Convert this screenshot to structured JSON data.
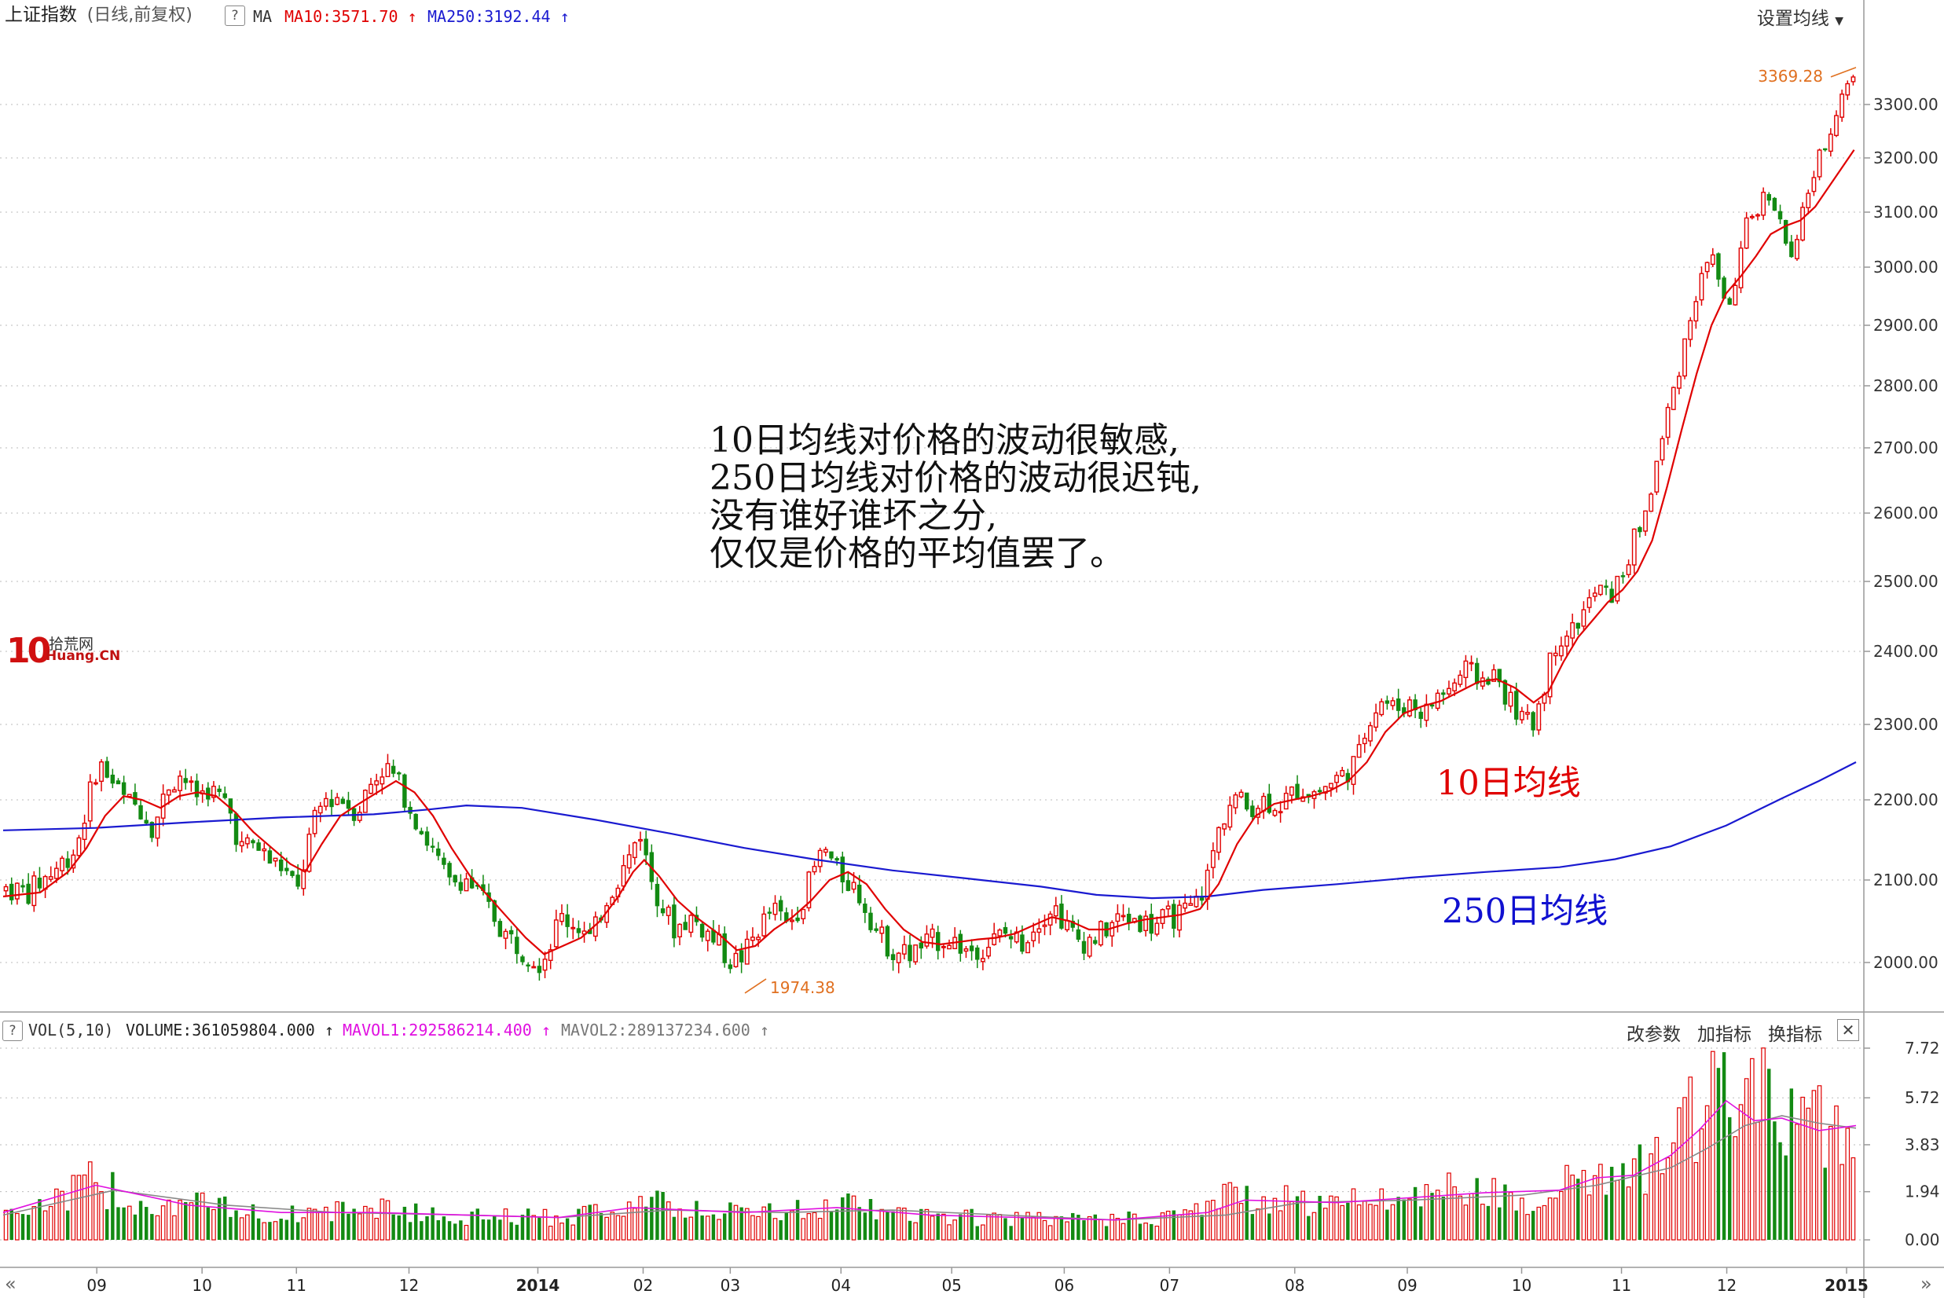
{
  "header": {
    "title": "上证指数",
    "subtitle": "(日线,前复权)",
    "help": "?",
    "ma_label": "MA",
    "ma10_label": "MA10:3571.70",
    "ma250_label": "MA250:3192.44",
    "settings_label": "设置均线",
    "colors": {
      "ma10": "#e00000",
      "ma250": "#1a1ad0",
      "up": "#e00000",
      "down": "#138a13"
    }
  },
  "volume_header": {
    "help": "?",
    "vol_label": "VOL(5,10)",
    "volume_label": "VOLUME:361059804.000",
    "mavol1_label": "MAVOL1:292586214.400",
    "mavol2_label": "MAVOL2:289137234.600",
    "buttons": [
      "改参数",
      "加指标",
      "换指标"
    ],
    "close": "✕",
    "colors": {
      "mavol1": "#e010e0",
      "mavol2": "#888888"
    }
  },
  "annotation": {
    "lines": [
      "10日均线对价格的波动很敏感,",
      "250日均线对价格的波动很迟钝,",
      "没有谁好谁坏之分,",
      "仅仅是价格的平均值罢了。"
    ]
  },
  "series_labels": {
    "ma10": "10日均线",
    "ma250": "250日均线"
  },
  "logo": {
    "number": "10",
    "cn": "拾荒网",
    "en": "Huang.CN"
  },
  "nav": {
    "left": "«",
    "right": "»"
  },
  "chart_data": {
    "type": "candlestick",
    "price_axis": {
      "ticks": [
        3300,
        3200,
        3100,
        3000,
        2900,
        2800,
        2700,
        2600,
        2500,
        2400,
        2300,
        2200,
        2100,
        2000
      ],
      "tick_labels": [
        "3300.00",
        "3200.00",
        "3100.00",
        "3000.00",
        "2900.00",
        "2800.00",
        "2700.00",
        "2600.00",
        "2500.00",
        "2400.00",
        "2300.00",
        "2200.00",
        "2100.00",
        "2000.00"
      ]
    },
    "volume_axis": {
      "ticks": [
        7.72,
        5.72,
        3.83,
        1.94,
        0.0
      ],
      "tick_labels": [
        "7.72",
        "5.72",
        "3.83",
        "1.94",
        "0.00"
      ]
    },
    "x_ticks": [
      {
        "label": "09",
        "pos": 0.036
      },
      {
        "label": "10",
        "pos": 0.094
      },
      {
        "label": "11",
        "pos": 0.146
      },
      {
        "label": "12",
        "pos": 0.208
      },
      {
        "label": "2014",
        "pos": 0.279
      },
      {
        "label": "02",
        "pos": 0.337
      },
      {
        "label": "03",
        "pos": 0.385
      },
      {
        "label": "04",
        "pos": 0.446
      },
      {
        "label": "05",
        "pos": 0.507
      },
      {
        "label": "06",
        "pos": 0.569
      },
      {
        "label": "07",
        "pos": 0.627
      },
      {
        "label": "08",
        "pos": 0.696
      },
      {
        "label": "09",
        "pos": 0.758
      },
      {
        "label": "10",
        "pos": 0.821
      },
      {
        "label": "11",
        "pos": 0.876
      },
      {
        "label": "12",
        "pos": 0.934
      },
      {
        "label": "2015",
        "pos": 1.0
      }
    ],
    "annotations": [
      {
        "text": "3369.28",
        "value": 3369.28
      },
      {
        "text": "1974.38",
        "value": 1974.38
      }
    ],
    "close_path": [
      [
        0.0,
        2090
      ],
      [
        0.012,
        2085
      ],
      [
        0.025,
        2110
      ],
      [
        0.038,
        2140
      ],
      [
        0.045,
        2205
      ],
      [
        0.05,
        2250
      ],
      [
        0.056,
        2230
      ],
      [
        0.064,
        2200
      ],
      [
        0.073,
        2190
      ],
      [
        0.08,
        2165
      ],
      [
        0.088,
        2220
      ],
      [
        0.095,
        2235
      ],
      [
        0.102,
        2205
      ],
      [
        0.11,
        2215
      ],
      [
        0.12,
        2195
      ],
      [
        0.127,
        2140
      ],
      [
        0.135,
        2145
      ],
      [
        0.142,
        2125
      ],
      [
        0.15,
        2115
      ],
      [
        0.158,
        2085
      ],
      [
        0.165,
        2160
      ],
      [
        0.172,
        2200
      ],
      [
        0.18,
        2205
      ],
      [
        0.19,
        2185
      ],
      [
        0.197,
        2220
      ],
      [
        0.205,
        2245
      ],
      [
        0.212,
        2225
      ],
      [
        0.22,
        2185
      ],
      [
        0.23,
        2140
      ],
      [
        0.24,
        2095
      ],
      [
        0.248,
        2105
      ],
      [
        0.26,
        2070
      ],
      [
        0.27,
        2035
      ],
      [
        0.28,
        2015
      ],
      [
        0.29,
        2000
      ],
      [
        0.3,
        2055
      ],
      [
        0.31,
        2045
      ],
      [
        0.317,
        2025
      ],
      [
        0.324,
        2075
      ],
      [
        0.332,
        2105
      ],
      [
        0.338,
        2130
      ],
      [
        0.343,
        2165
      ],
      [
        0.348,
        2110
      ],
      [
        0.355,
        2070
      ],
      [
        0.362,
        2040
      ],
      [
        0.37,
        2055
      ],
      [
        0.378,
        2040
      ],
      [
        0.386,
        2020
      ],
      [
        0.393,
        2000
      ],
      [
        0.4,
        2010
      ],
      [
        0.407,
        2040
      ],
      [
        0.415,
        2065
      ],
      [
        0.423,
        2045
      ],
      [
        0.43,
        2070
      ],
      [
        0.438,
        2115
      ],
      [
        0.443,
        2140
      ],
      [
        0.45,
        2110
      ],
      [
        0.458,
        2095
      ],
      [
        0.465,
        2070
      ],
      [
        0.472,
        2035
      ],
      [
        0.48,
        2015
      ],
      [
        0.49,
        2010
      ],
      [
        0.5,
        2025
      ],
      [
        0.51,
        2030
      ],
      [
        0.52,
        2015
      ],
      [
        0.53,
        2020
      ],
      [
        0.54,
        2035
      ],
      [
        0.55,
        2025
      ],
      [
        0.56,
        2055
      ],
      [
        0.567,
        2070
      ],
      [
        0.575,
        2040
      ],
      [
        0.582,
        2025
      ],
      [
        0.59,
        2030
      ],
      [
        0.6,
        2050
      ],
      [
        0.61,
        2055
      ],
      [
        0.62,
        2045
      ],
      [
        0.63,
        2055
      ],
      [
        0.64,
        2060
      ],
      [
        0.645,
        2075
      ],
      [
        0.65,
        2100
      ],
      [
        0.655,
        2150
      ],
      [
        0.66,
        2185
      ],
      [
        0.665,
        2205
      ],
      [
        0.672,
        2190
      ],
      [
        0.68,
        2200
      ],
      [
        0.69,
        2195
      ],
      [
        0.7,
        2215
      ],
      [
        0.71,
        2210
      ],
      [
        0.718,
        2225
      ],
      [
        0.725,
        2235
      ],
      [
        0.732,
        2255
      ],
      [
        0.738,
        2310
      ],
      [
        0.745,
        2335
      ],
      [
        0.752,
        2320
      ],
      [
        0.76,
        2330
      ],
      [
        0.768,
        2315
      ],
      [
        0.775,
        2340
      ],
      [
        0.782,
        2350
      ],
      [
        0.79,
        2375
      ],
      [
        0.798,
        2360
      ],
      [
        0.805,
        2370
      ],
      [
        0.812,
        2340
      ],
      [
        0.82,
        2310
      ],
      [
        0.826,
        2295
      ],
      [
        0.832,
        2350
      ],
      [
        0.84,
        2420
      ],
      [
        0.848,
        2430
      ],
      [
        0.855,
        2460
      ],
      [
        0.862,
        2490
      ],
      [
        0.868,
        2475
      ],
      [
        0.875,
        2510
      ],
      [
        0.882,
        2565
      ],
      [
        0.888,
        2605
      ],
      [
        0.894,
        2680
      ],
      [
        0.9,
        2760
      ],
      [
        0.906,
        2835
      ],
      [
        0.912,
        2920
      ],
      [
        0.918,
        2980
      ],
      [
        0.924,
        3030
      ],
      [
        0.93,
        2935
      ],
      [
        0.936,
        2960
      ],
      [
        0.942,
        3070
      ],
      [
        0.948,
        3110
      ],
      [
        0.955,
        3140
      ],
      [
        0.962,
        3060
      ],
      [
        0.968,
        3000
      ],
      [
        0.974,
        3130
      ],
      [
        0.98,
        3180
      ],
      [
        0.986,
        3240
      ],
      [
        0.992,
        3300
      ],
      [
        0.997,
        3345
      ]
    ],
    "ma10_path": [
      [
        0.0,
        2080
      ],
      [
        0.02,
        2085
      ],
      [
        0.035,
        2110
      ],
      [
        0.045,
        2140
      ],
      [
        0.055,
        2180
      ],
      [
        0.065,
        2205
      ],
      [
        0.075,
        2200
      ],
      [
        0.085,
        2190
      ],
      [
        0.095,
        2205
      ],
      [
        0.105,
        2210
      ],
      [
        0.115,
        2205
      ],
      [
        0.125,
        2185
      ],
      [
        0.135,
        2160
      ],
      [
        0.145,
        2140
      ],
      [
        0.155,
        2120
      ],
      [
        0.163,
        2110
      ],
      [
        0.172,
        2145
      ],
      [
        0.182,
        2180
      ],
      [
        0.192,
        2195
      ],
      [
        0.202,
        2210
      ],
      [
        0.212,
        2225
      ],
      [
        0.222,
        2210
      ],
      [
        0.232,
        2180
      ],
      [
        0.242,
        2140
      ],
      [
        0.252,
        2105
      ],
      [
        0.262,
        2080
      ],
      [
        0.272,
        2055
      ],
      [
        0.282,
        2030
      ],
      [
        0.292,
        2010
      ],
      [
        0.302,
        2020
      ],
      [
        0.312,
        2030
      ],
      [
        0.322,
        2050
      ],
      [
        0.332,
        2080
      ],
      [
        0.34,
        2110
      ],
      [
        0.346,
        2125
      ],
      [
        0.354,
        2105
      ],
      [
        0.364,
        2075
      ],
      [
        0.374,
        2055
      ],
      [
        0.386,
        2035
      ],
      [
        0.396,
        2015
      ],
      [
        0.406,
        2020
      ],
      [
        0.416,
        2040
      ],
      [
        0.426,
        2055
      ],
      [
        0.436,
        2075
      ],
      [
        0.446,
        2100
      ],
      [
        0.456,
        2110
      ],
      [
        0.466,
        2095
      ],
      [
        0.476,
        2065
      ],
      [
        0.486,
        2040
      ],
      [
        0.496,
        2025
      ],
      [
        0.506,
        2022
      ],
      [
        0.516,
        2025
      ],
      [
        0.526,
        2028
      ],
      [
        0.536,
        2030
      ],
      [
        0.546,
        2035
      ],
      [
        0.556,
        2045
      ],
      [
        0.566,
        2055
      ],
      [
        0.576,
        2050
      ],
      [
        0.586,
        2040
      ],
      [
        0.596,
        2040
      ],
      [
        0.606,
        2047
      ],
      [
        0.616,
        2052
      ],
      [
        0.626,
        2055
      ],
      [
        0.636,
        2058
      ],
      [
        0.646,
        2065
      ],
      [
        0.656,
        2095
      ],
      [
        0.666,
        2145
      ],
      [
        0.676,
        2180
      ],
      [
        0.686,
        2195
      ],
      [
        0.696,
        2200
      ],
      [
        0.706,
        2205
      ],
      [
        0.716,
        2212
      ],
      [
        0.726,
        2225
      ],
      [
        0.736,
        2250
      ],
      [
        0.746,
        2290
      ],
      [
        0.756,
        2315
      ],
      [
        0.766,
        2325
      ],
      [
        0.776,
        2332
      ],
      [
        0.786,
        2345
      ],
      [
        0.796,
        2358
      ],
      [
        0.806,
        2362
      ],
      [
        0.816,
        2350
      ],
      [
        0.826,
        2330
      ],
      [
        0.834,
        2345
      ],
      [
        0.842,
        2385
      ],
      [
        0.85,
        2420
      ],
      [
        0.858,
        2445
      ],
      [
        0.866,
        2470
      ],
      [
        0.874,
        2488
      ],
      [
        0.882,
        2515
      ],
      [
        0.89,
        2560
      ],
      [
        0.898,
        2640
      ],
      [
        0.906,
        2730
      ],
      [
        0.914,
        2820
      ],
      [
        0.922,
        2900
      ],
      [
        0.93,
        2955
      ],
      [
        0.938,
        2985
      ],
      [
        0.946,
        3020
      ],
      [
        0.954,
        3060
      ],
      [
        0.962,
        3075
      ],
      [
        0.97,
        3085
      ],
      [
        0.978,
        3110
      ],
      [
        0.986,
        3150
      ],
      [
        0.994,
        3190
      ],
      [
        0.999,
        3215
      ]
    ],
    "ma250_path": [
      [
        0.0,
        2162
      ],
      [
        0.05,
        2165
      ],
      [
        0.1,
        2172
      ],
      [
        0.15,
        2178
      ],
      [
        0.2,
        2182
      ],
      [
        0.23,
        2188
      ],
      [
        0.25,
        2193
      ],
      [
        0.28,
        2190
      ],
      [
        0.32,
        2175
      ],
      [
        0.36,
        2158
      ],
      [
        0.4,
        2140
      ],
      [
        0.44,
        2125
      ],
      [
        0.48,
        2112
      ],
      [
        0.52,
        2102
      ],
      [
        0.56,
        2092
      ],
      [
        0.59,
        2082
      ],
      [
        0.62,
        2078
      ],
      [
        0.65,
        2080
      ],
      [
        0.68,
        2088
      ],
      [
        0.72,
        2095
      ],
      [
        0.76,
        2103
      ],
      [
        0.8,
        2110
      ],
      [
        0.84,
        2116
      ],
      [
        0.87,
        2126
      ],
      [
        0.9,
        2142
      ],
      [
        0.93,
        2168
      ],
      [
        0.96,
        2202
      ],
      [
        0.98,
        2225
      ],
      [
        1.0,
        2250
      ]
    ],
    "volume_path": [
      [
        0.0,
        1.2
      ],
      [
        0.03,
        1.6
      ],
      [
        0.045,
        2.3
      ],
      [
        0.06,
        1.9
      ],
      [
        0.08,
        1.4
      ],
      [
        0.1,
        1.5
      ],
      [
        0.13,
        1.1
      ],
      [
        0.16,
        1.0
      ],
      [
        0.2,
        1.3
      ],
      [
        0.23,
        1.0
      ],
      [
        0.26,
        0.9
      ],
      [
        0.3,
        0.9
      ],
      [
        0.33,
        1.3
      ],
      [
        0.34,
        1.6
      ],
      [
        0.37,
        1.2
      ],
      [
        0.4,
        1.1
      ],
      [
        0.43,
        1.2
      ],
      [
        0.45,
        1.5
      ],
      [
        0.48,
        1.0
      ],
      [
        0.52,
        0.9
      ],
      [
        0.56,
        0.8
      ],
      [
        0.6,
        0.8
      ],
      [
        0.64,
        1.0
      ],
      [
        0.66,
        1.8
      ],
      [
        0.68,
        1.6
      ],
      [
        0.72,
        1.5
      ],
      [
        0.74,
        1.7
      ],
      [
        0.78,
        2.0
      ],
      [
        0.8,
        1.9
      ],
      [
        0.83,
        1.6
      ],
      [
        0.85,
        2.7
      ],
      [
        0.87,
        2.4
      ],
      [
        0.89,
        3.0
      ],
      [
        0.91,
        4.5
      ],
      [
        0.925,
        6.0
      ],
      [
        0.935,
        5.2
      ],
      [
        0.95,
        5.6
      ],
      [
        0.97,
        4.8
      ],
      [
        0.985,
        4.6
      ],
      [
        1.0,
        5.0
      ]
    ],
    "mavol1_path": [
      [
        0.0,
        1.1
      ],
      [
        0.05,
        2.2
      ],
      [
        0.1,
        1.4
      ],
      [
        0.15,
        1.1
      ],
      [
        0.2,
        1.1
      ],
      [
        0.25,
        1.0
      ],
      [
        0.3,
        0.9
      ],
      [
        0.34,
        1.3
      ],
      [
        0.4,
        1.1
      ],
      [
        0.45,
        1.3
      ],
      [
        0.5,
        1.0
      ],
      [
        0.55,
        0.9
      ],
      [
        0.6,
        0.8
      ],
      [
        0.65,
        1.1
      ],
      [
        0.67,
        1.6
      ],
      [
        0.72,
        1.5
      ],
      [
        0.76,
        1.7
      ],
      [
        0.8,
        1.9
      ],
      [
        0.84,
        2.0
      ],
      [
        0.86,
        2.5
      ],
      [
        0.88,
        2.6
      ],
      [
        0.9,
        3.4
      ],
      [
        0.915,
        4.4
      ],
      [
        0.93,
        5.6
      ],
      [
        0.945,
        4.8
      ],
      [
        0.96,
        4.9
      ],
      [
        0.98,
        4.4
      ],
      [
        1.0,
        4.6
      ]
    ],
    "mavol2_path": [
      [
        0.0,
        1.0
      ],
      [
        0.06,
        2.0
      ],
      [
        0.12,
        1.4
      ],
      [
        0.18,
        1.1
      ],
      [
        0.25,
        1.0
      ],
      [
        0.3,
        0.9
      ],
      [
        0.36,
        1.2
      ],
      [
        0.42,
        1.1
      ],
      [
        0.48,
        1.2
      ],
      [
        0.54,
        1.0
      ],
      [
        0.6,
        0.8
      ],
      [
        0.66,
        1.0
      ],
      [
        0.7,
        1.5
      ],
      [
        0.76,
        1.6
      ],
      [
        0.82,
        1.8
      ],
      [
        0.86,
        2.2
      ],
      [
        0.9,
        2.9
      ],
      [
        0.92,
        3.7
      ],
      [
        0.94,
        4.6
      ],
      [
        0.96,
        5.0
      ],
      [
        0.98,
        4.7
      ],
      [
        1.0,
        4.5
      ]
    ]
  }
}
